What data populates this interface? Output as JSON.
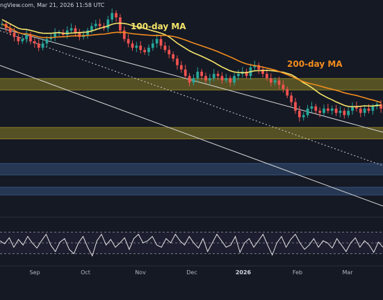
{
  "header": {
    "watermark": "ngView.com, Mar 21, 2026 11:58 UTC"
  },
  "chart_data": {
    "type": "candlestick",
    "x_axis": {
      "ticks": [
        {
          "label": "Sep",
          "bold": false
        },
        {
          "label": "Oct",
          "bold": false
        },
        {
          "label": "Nov",
          "bold": false
        },
        {
          "label": "Dec",
          "bold": false
        },
        {
          "label": "2026",
          "bold": true
        },
        {
          "label": "Feb",
          "bold": false
        },
        {
          "label": "Mar",
          "bold": false
        }
      ]
    },
    "annotations": [
      {
        "text": "100-day MA",
        "color": "#f5e46a"
      },
      {
        "text": "200-day MA",
        "color": "#f28c1e"
      }
    ],
    "colors": {
      "up": "#26a69a",
      "down": "#ef5350",
      "ma100": "#f5e46a",
      "ma200": "#f28c1e",
      "resistance_zone": "#8a7f24",
      "support_zone": "#35507a",
      "rsi": "#e6e6e6",
      "channel": "#d9d9d9",
      "background": "#151924"
    },
    "zones": [
      {
        "type": "resistance",
        "y_from": 0.262,
        "y_to": 0.3
      },
      {
        "type": "resistance",
        "y_from": 0.425,
        "y_to": 0.463
      },
      {
        "type": "support",
        "y_from": 0.545,
        "y_to": 0.583
      },
      {
        "type": "support",
        "y_from": 0.624,
        "y_to": 0.65
      }
    ],
    "price_series_relative": [
      0.11,
      0.13,
      0.15,
      0.17,
      0.19,
      0.18,
      0.16,
      0.19,
      0.2,
      0.22,
      0.2,
      0.18,
      0.17,
      0.15,
      0.15,
      0.16,
      0.14,
      0.13,
      0.15,
      0.17,
      0.16,
      0.14,
      0.12,
      0.11,
      0.12,
      0.13,
      0.09,
      0.06,
      0.08,
      0.14,
      0.18,
      0.2,
      0.22,
      0.21,
      0.23,
      0.24,
      0.22,
      0.2,
      0.18,
      0.21,
      0.23,
      0.25,
      0.27,
      0.3,
      0.32,
      0.35,
      0.38,
      0.36,
      0.33,
      0.35,
      0.37,
      0.36,
      0.34,
      0.35,
      0.37,
      0.36,
      0.38,
      0.35,
      0.34,
      0.33,
      0.35,
      0.31,
      0.3,
      0.32,
      0.34,
      0.36,
      0.38,
      0.37,
      0.39,
      0.41,
      0.44,
      0.47,
      0.51,
      0.54,
      0.53,
      0.5,
      0.49,
      0.51,
      0.52,
      0.5,
      0.51,
      0.5,
      0.52,
      0.51,
      0.53,
      0.51,
      0.49,
      0.5,
      0.52,
      0.5,
      0.51,
      0.49,
      0.48,
      0.5
    ],
    "rsi_series_relative": [
      0.45,
      0.52,
      0.38,
      0.6,
      0.42,
      0.55,
      0.35,
      0.5,
      0.62,
      0.45,
      0.3,
      0.55,
      0.7,
      0.48,
      0.4,
      0.65,
      0.75,
      0.5,
      0.35,
      0.6,
      0.8,
      0.45,
      0.3,
      0.55,
      0.42,
      0.6,
      0.5,
      0.38,
      0.65,
      0.4,
      0.3,
      0.5,
      0.45,
      0.35,
      0.55,
      0.6,
      0.4,
      0.5,
      0.3,
      0.45,
      0.55,
      0.35,
      0.5,
      0.62,
      0.4,
      0.7,
      0.5,
      0.3,
      0.45,
      0.6,
      0.55,
      0.35,
      0.72,
      0.5,
      0.4,
      0.6,
      0.45,
      0.3,
      0.55,
      0.78,
      0.5,
      0.35,
      0.6,
      0.42,
      0.3,
      0.5,
      0.65,
      0.55,
      0.4,
      0.6,
      0.45,
      0.5,
      0.62,
      0.4,
      0.55,
      0.7,
      0.5,
      0.38,
      0.6,
      0.45,
      0.55,
      0.72,
      0.48,
      0.6
    ]
  }
}
